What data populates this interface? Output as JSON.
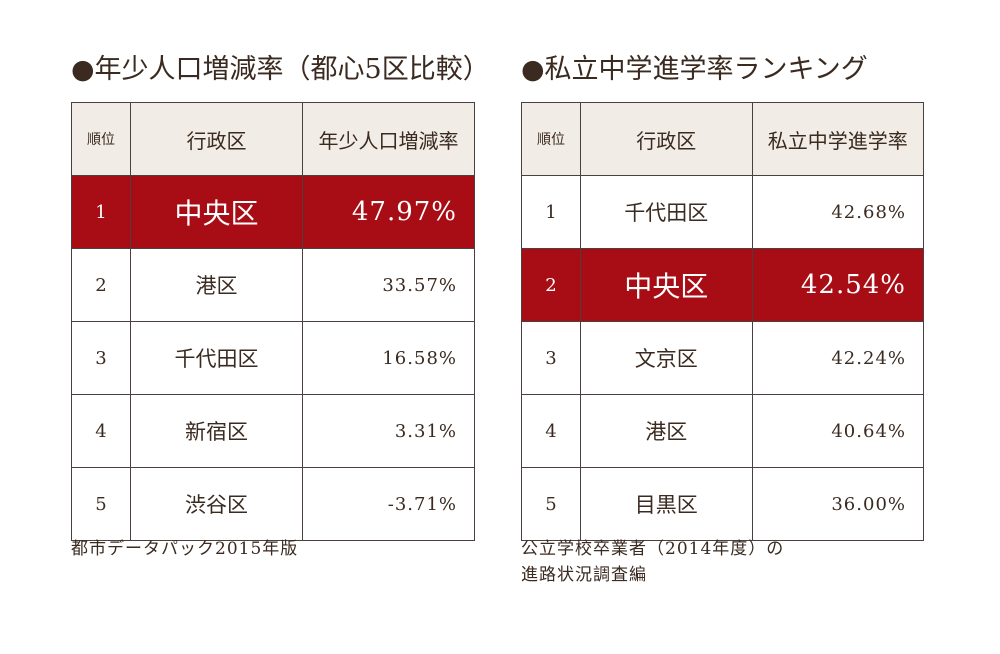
{
  "left_panel": {
    "title": "●年少人口増減率（都心5区比較）",
    "headers": {
      "rank": "順位",
      "ward": "行政区",
      "value": "年少人口増減率"
    },
    "rows": [
      {
        "rank": "1",
        "ward": "中央区",
        "value": "47.97%",
        "highlight": true
      },
      {
        "rank": "2",
        "ward": "港区",
        "value": "33.57%",
        "highlight": false
      },
      {
        "rank": "3",
        "ward": "千代田区",
        "value": "16.58%",
        "highlight": false
      },
      {
        "rank": "4",
        "ward": "新宿区",
        "value": "3.31%",
        "highlight": false
      },
      {
        "rank": "5",
        "ward": "渋谷区",
        "value": "-3.71%",
        "highlight": false
      }
    ],
    "source_lines": [
      "都市データパック2015年版"
    ]
  },
  "right_panel": {
    "title": "●私立中学進学率ランキング",
    "headers": {
      "rank": "順位",
      "ward": "行政区",
      "value": "私立中学進学率"
    },
    "rows": [
      {
        "rank": "1",
        "ward": "千代田区",
        "value": "42.68%",
        "highlight": false
      },
      {
        "rank": "2",
        "ward": "中央区",
        "value": "42.54%",
        "highlight": true
      },
      {
        "rank": "3",
        "ward": "文京区",
        "value": "42.24%",
        "highlight": false
      },
      {
        "rank": "4",
        "ward": "港区",
        "value": "40.64%",
        "highlight": false
      },
      {
        "rank": "5",
        "ward": "目黒区",
        "value": "36.00%",
        "highlight": false
      }
    ],
    "source_lines": [
      "公立学校卒業者（2014年度）の",
      "進路状況調査編"
    ]
  },
  "colors": {
    "highlight_bg": "#a80d16",
    "header_bg": "#f1ede6",
    "text": "#3a2a20",
    "border": "#4a4040"
  }
}
